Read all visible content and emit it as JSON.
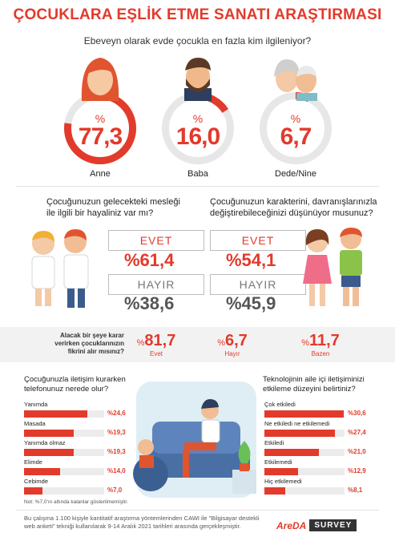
{
  "title": "ÇOCUKLARA EŞLİK ETME SANATI ARAŞTIRMASI",
  "q1": {
    "question": "Ebeveyn olarak evde çocukla en fazla kim ilgileniyor?",
    "items": [
      {
        "label": "Anne",
        "pct": "%",
        "value": "77,3",
        "fraction": 0.773
      },
      {
        "label": "Baba",
        "pct": "%",
        "value": "16,0",
        "fraction": 0.16
      },
      {
        "label": "Dede/Nine",
        "pct": "%",
        "value": "6,7",
        "fraction": 0.067
      }
    ]
  },
  "q2": {
    "question": "Çocuğunuzun gelecekteki mesleği ile ilgili bir hayaliniz var mı?",
    "yes_label": "EVET",
    "yes_value": "%61,4",
    "no_label": "HAYIR",
    "no_value": "%38,6"
  },
  "q3": {
    "question": "Çocuğunuzun karakterini, davranışlarınızla değiştirebileceğinizi düşünüyor musunuz?",
    "yes_label": "EVET",
    "yes_value": "%54,1",
    "no_label": "HAYIR",
    "no_value": "%45,9"
  },
  "q4": {
    "question": "Alacak bir şeye karar verirken çocuklarınızın fikrini alır mısınız?",
    "items": [
      {
        "pct": "%",
        "value": "81,7",
        "label": "Evet"
      },
      {
        "pct": "%",
        "value": "6,7",
        "label": "Hayır"
      },
      {
        "pct": "%",
        "value": "11,7",
        "label": "Bazen"
      }
    ]
  },
  "q5": {
    "question": "Çocuğunuzla iletişim kurarken telefonunuz nerede olur?",
    "items": [
      {
        "label": "Yanımda",
        "value": "%24,6",
        "num": 24.6
      },
      {
        "label": "Masada",
        "value": "%19,3",
        "num": 19.3
      },
      {
        "label": "Yanımda olmaz",
        "value": "%19,3",
        "num": 19.3
      },
      {
        "label": "Elimde",
        "value": "%14,0",
        "num": 14.0
      },
      {
        "label": "Cebimde",
        "value": "%7,0",
        "num": 7.0
      }
    ],
    "note": "Not: %7,0'ın altında kalanlar gösterilmemiştir."
  },
  "q6": {
    "question": "Teknolojinin aile içi iletişiminizi etkileme düzeyini belirtiniz?",
    "items": [
      {
        "label": "Çok etkiledi",
        "value": "%30,6",
        "num": 30.6
      },
      {
        "label": "Ne etkiledi ne etkilemedi",
        "value": "%27,4",
        "num": 27.4
      },
      {
        "label": "Etkiledi",
        "value": "%21,0",
        "num": 21.0
      },
      {
        "label": "Etkilemedi",
        "value": "%12,9",
        "num": 12.9
      },
      {
        "label": "Hiç etkilemedi",
        "value": "%8,1",
        "num": 8.1
      }
    ]
  },
  "footer": "Bu çalışma 1.100 kişiyle kantitatif araştırma yöntemlerinden CAWI ile \"Bilgisayar destekli web anketi\" tekniği kullanılarak 9-14 Aralık 2021 tarihleri arasında gerçekleşmiştir.",
  "logo": {
    "brand": "AreDA",
    "survey": "SURVEY"
  },
  "colors": {
    "accent": "#e23a2b",
    "ring_bg": "#e7e7e7"
  }
}
